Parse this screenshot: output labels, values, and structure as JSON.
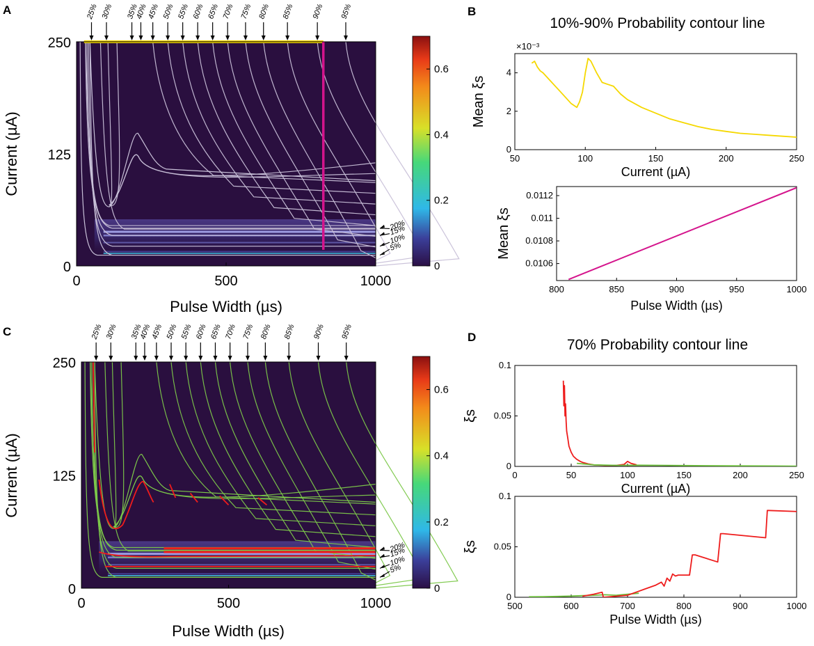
{
  "panels": {
    "A": {
      "letter": "A"
    },
    "B": {
      "letter": "B"
    },
    "C": {
      "letter": "C"
    },
    "D": {
      "letter": "D"
    }
  },
  "heatmap_ticks": {
    "x": [
      "0",
      "500",
      "1000"
    ],
    "y": [
      "0",
      "125",
      "250"
    ],
    "colorbar": [
      "0",
      "0.2",
      "0.4",
      "0.6"
    ],
    "top_contours": [
      "25%",
      "30%",
      "35%",
      "40%",
      "45%",
      "50%",
      "55%",
      "60%",
      "65%",
      "70%",
      "75%",
      "80%",
      "85%",
      "90%",
      "95%"
    ],
    "side_contours": [
      "20%",
      "15%",
      "10%",
      "5%"
    ]
  },
  "colors": {
    "background": "#2a0f3f",
    "contour_a": "#c8c0d8",
    "contour_c": "#7cc84a",
    "yellow": "#f5d800",
    "magenta": "#d4148c",
    "red": "#ee1c1c",
    "green": "#6cbf3c",
    "band": "#8a8adc"
  },
  "chart_data": [
    {
      "id": "A",
      "type": "heatmap",
      "xlabel": "Pulse Width (µs)",
      "ylabel": "Current (µA)",
      "xlim": [
        0,
        1000
      ],
      "ylim": [
        0,
        250
      ],
      "colorbar_range": [
        0,
        0.7
      ],
      "contour_levels": [
        5,
        10,
        15,
        20,
        25,
        30,
        35,
        40,
        45,
        50,
        55,
        60,
        65,
        70,
        75,
        80,
        85,
        90,
        95
      ],
      "overlay_lines": [
        {
          "name": "10%-90% current line",
          "color": "yellow",
          "current": 250,
          "pulse_width": [
            25,
            825
          ]
        },
        {
          "name": "10%-90% pulse width line",
          "color": "magenta",
          "pulse_width": 825,
          "current": [
            18,
            250
          ]
        }
      ]
    },
    {
      "id": "B-top",
      "type": "line",
      "title": "10%-90% Probability contour line",
      "xlabel": "Current (µA)",
      "ylabel": "Mean ξs",
      "y_exponent": "×10⁻³",
      "xlim": [
        50,
        250
      ],
      "ylim": [
        0,
        5
      ],
      "xticks": [
        "50",
        "100",
        "150",
        "200",
        "250"
      ],
      "yticks": [
        "0",
        "2",
        "4"
      ],
      "series": [
        {
          "name": "Mean xi_s (x1e-3)",
          "color": "yellow",
          "x": [
            62,
            64,
            66,
            68,
            70,
            75,
            80,
            85,
            90,
            94,
            96,
            98,
            100,
            102,
            104,
            108,
            112,
            116,
            120,
            125,
            130,
            140,
            150,
            160,
            170,
            180,
            190,
            200,
            210,
            220,
            230,
            240,
            250
          ],
          "y": [
            4.5,
            4.6,
            4.3,
            4.1,
            4.0,
            3.6,
            3.2,
            2.8,
            2.4,
            2.2,
            2.5,
            3.0,
            4.0,
            4.75,
            4.6,
            4.0,
            3.5,
            3.4,
            3.3,
            2.9,
            2.6,
            2.2,
            1.9,
            1.6,
            1.4,
            1.2,
            1.05,
            0.95,
            0.85,
            0.8,
            0.75,
            0.7,
            0.65
          ]
        }
      ]
    },
    {
      "id": "B-bottom",
      "type": "line",
      "xlabel": "Pulse Width (µs)",
      "ylabel": "Mean ξs",
      "xlim": [
        800,
        1000
      ],
      "ylim": [
        0.01045,
        0.01128
      ],
      "xticks": [
        "800",
        "850",
        "900",
        "950",
        "1000"
      ],
      "yticks": [
        "0.0106",
        "0.0108",
        "0.011",
        "0.0112"
      ],
      "series": [
        {
          "name": "Mean xi_s",
          "color": "magenta",
          "x": [
            810,
            1000
          ],
          "y": [
            0.01046,
            0.01127
          ]
        }
      ]
    },
    {
      "id": "C",
      "type": "heatmap",
      "xlabel": "Pulse Width (µs)",
      "ylabel": "Current (µA)",
      "xlim": [
        0,
        1000
      ],
      "ylim": [
        0,
        250
      ],
      "colorbar_range": [
        0,
        0.7
      ],
      "contour_levels": [
        5,
        10,
        15,
        20,
        25,
        30,
        35,
        40,
        45,
        50,
        55,
        60,
        65,
        70,
        75,
        80,
        85,
        90,
        95
      ]
    },
    {
      "id": "D-top",
      "type": "line",
      "title": "70% Probability contour line",
      "xlabel": "Current (µA)",
      "ylabel": "ξs",
      "xlim": [
        0,
        250
      ],
      "ylim": [
        0,
        0.1
      ],
      "xticks": [
        "0",
        "50",
        "100",
        "150",
        "200",
        "250"
      ],
      "yticks": [
        "0",
        "0.05",
        "0.1"
      ],
      "series": [
        {
          "name": "red",
          "color": "red",
          "x": [
            43,
            43.5,
            44,
            44.5,
            45,
            45.5,
            46,
            47,
            48,
            50,
            52,
            55,
            58,
            60,
            65,
            70,
            80,
            90,
            97,
            100,
            103,
            108
          ],
          "y": [
            0.085,
            0.06,
            0.08,
            0.05,
            0.062,
            0.045,
            0.035,
            0.028,
            0.02,
            0.014,
            0.01,
            0.007,
            0.005,
            0.004,
            0.0025,
            0.0015,
            0.001,
            0.001,
            0.002,
            0.005,
            0.003,
            0.0015
          ]
        },
        {
          "name": "green",
          "color": "green",
          "x": [
            55,
            70,
            90,
            110,
            130,
            150,
            170,
            190,
            210,
            230,
            250
          ],
          "y": [
            0.003,
            0.0015,
            0.001,
            0.0012,
            0.001,
            0.0008,
            0.0007,
            0.0006,
            0.0005,
            0.0004,
            0.0003
          ]
        }
      ]
    },
    {
      "id": "D-bottom",
      "type": "line",
      "xlabel": "Pulse Width (µs)",
      "ylabel": "ξs",
      "xlim": [
        500,
        1000
      ],
      "ylim": [
        0,
        0.1
      ],
      "xticks": [
        "500",
        "600",
        "700",
        "800",
        "900",
        "1000"
      ],
      "yticks": [
        "0",
        "0.05",
        "0.1"
      ],
      "series": [
        {
          "name": "green",
          "color": "green",
          "x": [
            525,
            550,
            575,
            600,
            620,
            640,
            660,
            680,
            700,
            720
          ],
          "y": [
            0.0005,
            0.0006,
            0.0008,
            0.0012,
            0.0016,
            0.002,
            0.0025,
            0.002,
            0.003,
            0.004
          ]
        },
        {
          "name": "red",
          "color": "red",
          "x": [
            620,
            640,
            655,
            657,
            700,
            710,
            720,
            730,
            740,
            750,
            760,
            765,
            770,
            775,
            780,
            785,
            790,
            800,
            810,
            815,
            820,
            860,
            865,
            870,
            945,
            948,
            950,
            1000
          ],
          "y": [
            0.001,
            0.003,
            0.005,
            0.0,
            0.002,
            0.004,
            0.006,
            0.008,
            0.01,
            0.012,
            0.015,
            0.011,
            0.019,
            0.016,
            0.023,
            0.021,
            0.022,
            0.022,
            0.022,
            0.042,
            0.042,
            0.035,
            0.063,
            0.063,
            0.059,
            0.086,
            0.086,
            0.085
          ]
        }
      ]
    }
  ]
}
